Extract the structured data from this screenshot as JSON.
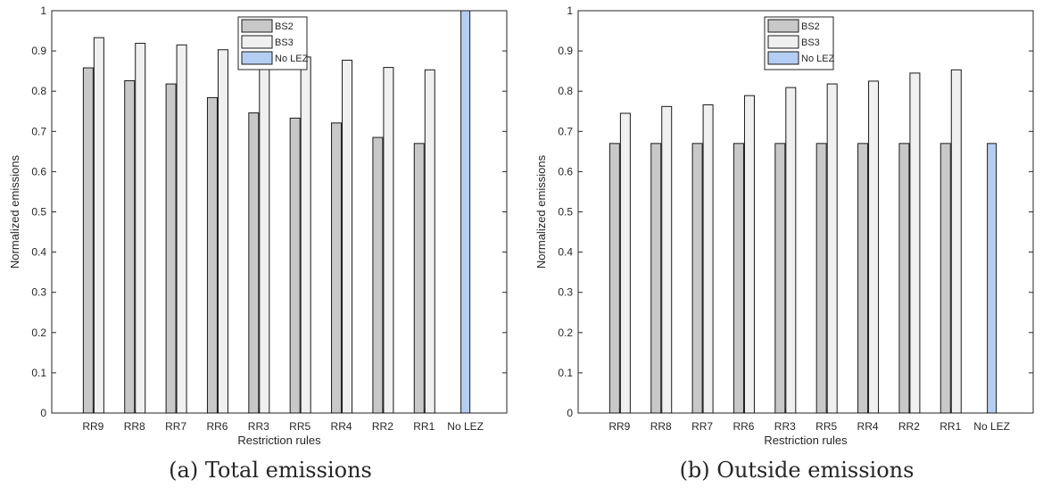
{
  "chart_data": [
    {
      "type": "bar",
      "caption": "(a) Total emissions",
      "xlabel": "Restriction rules",
      "ylabel": "Normalized emissions",
      "ylim": [
        0,
        1
      ],
      "yticks": [
        "0",
        "0.1",
        "0.2",
        "0.3",
        "0.4",
        "0.5",
        "0.6",
        "0.7",
        "0.8",
        "0.9",
        "1"
      ],
      "categories": [
        "RR9",
        "RR8",
        "RR7",
        "RR6",
        "RR3",
        "RR5",
        "RR4",
        "RR2",
        "RR1",
        "No LEZ"
      ],
      "legend_position": "top-center",
      "series": [
        {
          "name": "BS2",
          "color": "#c8c8c8",
          "values": [
            0.858,
            0.826,
            0.818,
            0.784,
            0.746,
            0.733,
            0.721,
            0.685,
            0.67,
            null
          ]
        },
        {
          "name": "BS3",
          "color": "#f0f0f0",
          "values": [
            0.933,
            0.919,
            0.915,
            0.903,
            0.89,
            0.885,
            0.877,
            0.859,
            0.853,
            null
          ]
        },
        {
          "name": "No LEZ",
          "color": "#b3cef2",
          "values": [
            null,
            null,
            null,
            null,
            null,
            null,
            null,
            null,
            null,
            1.0
          ]
        }
      ]
    },
    {
      "type": "bar",
      "caption": "(b) Outside emissions",
      "xlabel": "Restriction rules",
      "ylabel": "Normalized emissions",
      "ylim": [
        0,
        1
      ],
      "yticks": [
        "0",
        "0.1",
        "0.2",
        "0.3",
        "0.4",
        "0.5",
        "0.6",
        "0.7",
        "0.8",
        "0.9",
        "1"
      ],
      "categories": [
        "RR9",
        "RR8",
        "RR7",
        "RR6",
        "RR3",
        "RR5",
        "RR4",
        "RR2",
        "RR1",
        "No LEZ"
      ],
      "legend_position": "top-center",
      "series": [
        {
          "name": "BS2",
          "color": "#c8c8c8",
          "values": [
            0.67,
            0.67,
            0.67,
            0.67,
            0.67,
            0.67,
            0.67,
            0.67,
            0.67,
            null
          ]
        },
        {
          "name": "BS3",
          "color": "#f0f0f0",
          "values": [
            0.745,
            0.762,
            0.766,
            0.789,
            0.809,
            0.818,
            0.825,
            0.845,
            0.853,
            null
          ]
        },
        {
          "name": "No LEZ",
          "color": "#b3cef2",
          "values": [
            null,
            null,
            null,
            null,
            null,
            null,
            null,
            null,
            null,
            0.67
          ]
        }
      ]
    }
  ]
}
